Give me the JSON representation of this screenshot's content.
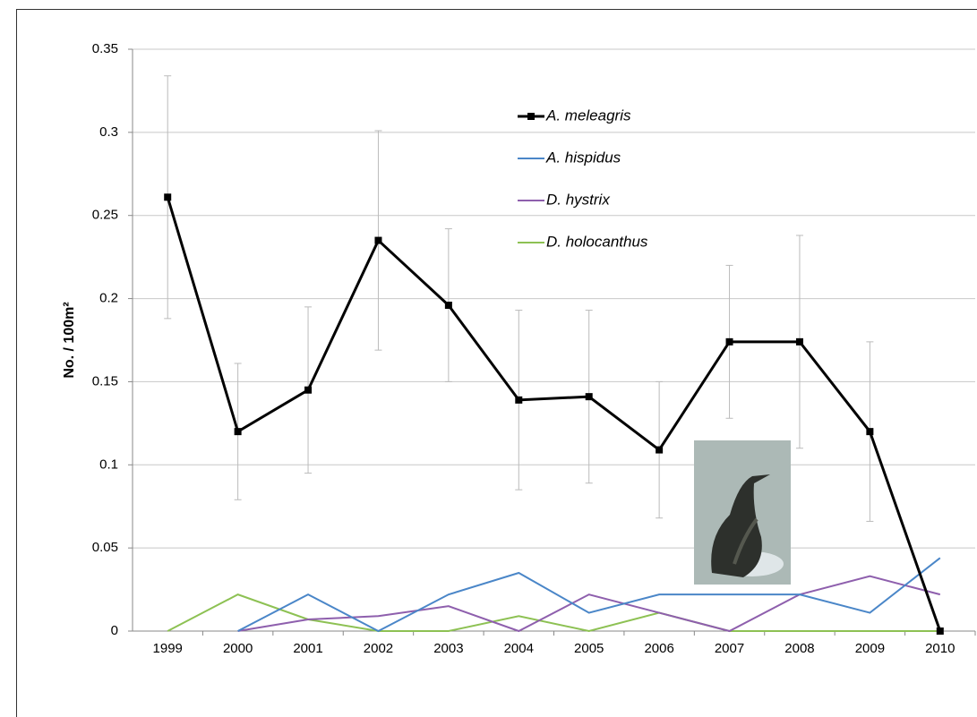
{
  "chart_data": {
    "type": "line",
    "y_label": "No. / 100m²",
    "categories": [
      "1999",
      "2000",
      "2001",
      "2002",
      "2003",
      "2004",
      "2005",
      "2006",
      "2007",
      "2008",
      "2009",
      "2010"
    ],
    "series": [
      {
        "name": "A. meleagris",
        "color": "#000000",
        "values": [
          0.261,
          0.12,
          0.145,
          0.235,
          0.196,
          0.139,
          0.141,
          0.109,
          0.174,
          0.174,
          0.12,
          0.0
        ],
        "errors": [
          0.073,
          0.041,
          0.05,
          0.066,
          0.046,
          0.054,
          0.052,
          0.041,
          0.046,
          0.064,
          0.054,
          0
        ]
      },
      {
        "name": "A. hispidus",
        "color": "#4a86c8",
        "values": [
          null,
          0,
          0.022,
          0,
          0.022,
          0.035,
          0.011,
          0.022,
          0.022,
          0.022,
          0.011,
          0.044
        ]
      },
      {
        "name": "D. hystrix",
        "color": "#8e5fad",
        "values": [
          null,
          0,
          0.007,
          0.009,
          0.015,
          0,
          0.022,
          0.011,
          0,
          0.022,
          0.033,
          0.022
        ]
      },
      {
        "name": "D. holocanthus",
        "color": "#8dc153",
        "values": [
          0,
          0.022,
          0.007,
          0,
          0,
          0.009,
          0,
          0.011,
          0,
          0,
          0,
          0
        ]
      }
    ],
    "ylim": [
      0,
      0.35
    ],
    "yticks": [
      0,
      0.05,
      0.1,
      0.15,
      0.2,
      0.25,
      0.3,
      0.35
    ],
    "grid": true
  }
}
